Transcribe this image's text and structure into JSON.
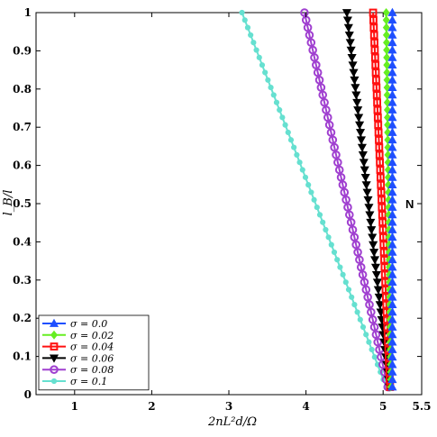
{
  "chart_data": {
    "type": "line",
    "xlabel": "2nL²d/Ω",
    "ylabel": "l_B/l",
    "xlim": [
      0.5,
      5.5
    ],
    "ylim": [
      0,
      1
    ],
    "xticks": [
      1,
      2,
      3,
      4,
      5,
      5.5
    ],
    "yticks": [
      0,
      0.1,
      0.2,
      0.3,
      0.4,
      0.5,
      0.6,
      0.7,
      0.8,
      0.9,
      1
    ],
    "xtick_labels": [
      "1",
      "2",
      "3",
      "4",
      "5",
      "5.5"
    ],
    "ytick_labels": [
      "0",
      "0.1",
      "0.2",
      "0.3",
      "0.4",
      "0.5",
      "0.6",
      "0.7",
      "0.8",
      "0.9",
      "1"
    ],
    "annotation": "N",
    "grid": false,
    "legend_position": "bottom-left",
    "series": [
      {
        "name": "σ = 0.0",
        "marker": "triangle-up",
        "color": "#1f4fff",
        "x_top": 5.12,
        "x_bottom": 5.12,
        "y_start": 1.0,
        "y_end": 0.02
      },
      {
        "name": "σ = 0.02",
        "marker": "diamond",
        "color": "#66ee22",
        "x_top": 5.04,
        "x_bottom": 5.1,
        "y_start": 1.0,
        "y_end": 0.02
      },
      {
        "name": "σ = 0.04",
        "marker": "square",
        "color": "#ff1010",
        "x_top": 4.87,
        "x_bottom": 5.09,
        "y_start": 1.0,
        "y_end": 0.02
      },
      {
        "name": "σ = 0.06",
        "marker": "triangle-down",
        "color": "#000000",
        "x_top": 4.53,
        "x_bottom": 5.08,
        "y_start": 1.0,
        "y_end": 0.02
      },
      {
        "name": "σ = 0.08",
        "marker": "circle",
        "color": "#a040d0",
        "x_top": 3.98,
        "x_bottom": 5.06,
        "y_start": 1.0,
        "y_end": 0.02
      },
      {
        "name": "σ = 0.1",
        "marker": "dot",
        "color": "#66e0d0",
        "x_top": 3.17,
        "x_bottom": 5.04,
        "y_start": 1.0,
        "y_end": 0.02
      }
    ]
  }
}
